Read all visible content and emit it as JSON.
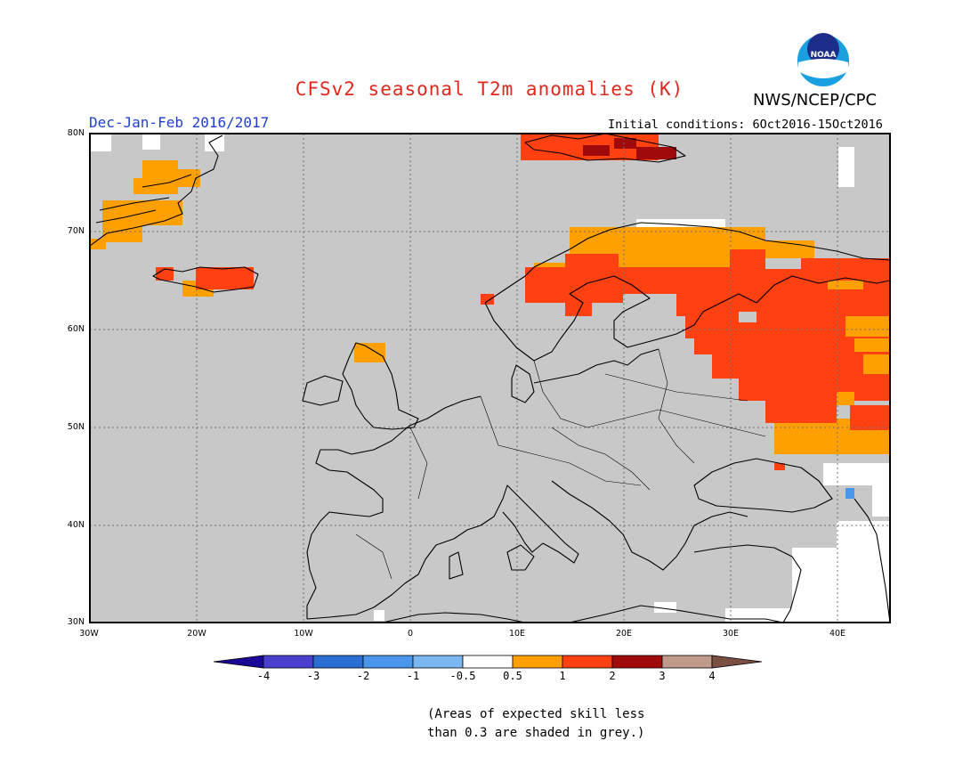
{
  "header": {
    "title": "CFSv2 seasonal T2m anomalies (K)",
    "agency": "NWS/NCEP/CPC",
    "logo_text": "NOAA",
    "season": "Dec-Jan-Feb 2016/2017",
    "initial_conditions": "Initial conditions: 6Oct2016-15Oct2016"
  },
  "map": {
    "region": "Europe",
    "lon_range": [
      -30,
      45
    ],
    "lat_range": [
      30,
      80
    ],
    "lat_labels": [
      "80N",
      "70N",
      "60N",
      "50N",
      "40N",
      "30N"
    ],
    "lon_labels": [
      "30W",
      "20W",
      "10W",
      "0",
      "10E",
      "20E",
      "30E",
      "40E"
    ],
    "colors": {
      "background": "#c8c8c8",
      "grid": "#707070",
      "coast": "#000000"
    }
  },
  "colorbar": {
    "tick_labels": [
      "-4",
      "-3",
      "-2",
      "-1",
      "-0.5",
      "0.5",
      "1",
      "2",
      "3",
      "4"
    ],
    "colors": [
      "#1c0896",
      "#4b3fcf",
      "#2a6ed4",
      "#4a96eb",
      "#7ab6f0",
      "#ffffff",
      "#ffa000",
      "#ff4010",
      "#a00a0a",
      "#c09a8a",
      "#7a5040"
    ]
  },
  "note": {
    "line1": "(Areas of expected skill less",
    "line2": "than 0.3 are shaded in grey.)"
  }
}
